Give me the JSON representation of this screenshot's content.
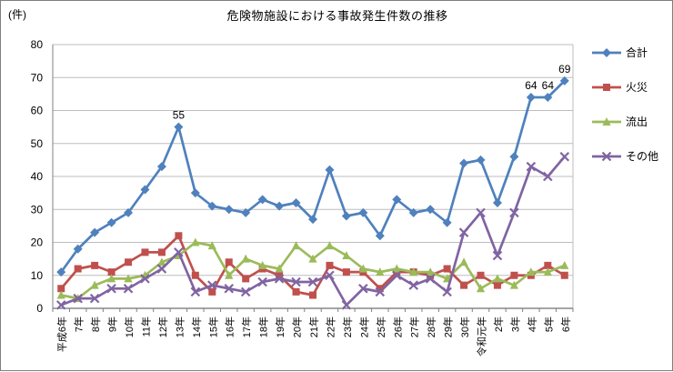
{
  "chart_data": {
    "type": "line",
    "title": "危険物施設における事故発生件数の推移",
    "y_unit_label": "(件)",
    "ylim": [
      0,
      80
    ],
    "ytick_interval": 10,
    "grid": true,
    "legend_position": "right",
    "categories": [
      "平成6年",
      "7年",
      "8年",
      "9年",
      "10年",
      "11年",
      "12年",
      "13年",
      "14年",
      "15年",
      "16年",
      "17年",
      "18年",
      "19年",
      "20年",
      "21年",
      "22年",
      "23年",
      "24年",
      "25年",
      "26年",
      "27年",
      "28年",
      "29年",
      "30年",
      "令和元年",
      "2年",
      "3年",
      "4年",
      "5年",
      "6年"
    ],
    "series": [
      {
        "name": "合計",
        "key": "total",
        "color": "#4F81BD",
        "marker": "diamond",
        "values": [
          11,
          18,
          23,
          26,
          29,
          36,
          43,
          55,
          35,
          31,
          30,
          29,
          33,
          31,
          32,
          27,
          42,
          28,
          29,
          22,
          33,
          29,
          30,
          26,
          44,
          45,
          32,
          46,
          64,
          64,
          69
        ]
      },
      {
        "name": "火災",
        "key": "fire",
        "color": "#C0504D",
        "marker": "square",
        "values": [
          6,
          12,
          13,
          11,
          14,
          17,
          17,
          22,
          10,
          5,
          14,
          9,
          12,
          10,
          5,
          4,
          13,
          11,
          11,
          6,
          11,
          11,
          10,
          12,
          7,
          10,
          7,
          10,
          10,
          13,
          10
        ]
      },
      {
        "name": "流出",
        "key": "spill",
        "color": "#9BBB59",
        "marker": "triangle",
        "values": [
          4,
          3,
          7,
          9,
          9,
          10,
          14,
          16,
          20,
          19,
          10,
          15,
          13,
          12,
          19,
          15,
          19,
          16,
          12,
          11,
          12,
          11,
          11,
          9,
          14,
          6,
          9,
          7,
          11,
          11,
          13
        ]
      },
      {
        "name": "その他",
        "key": "other",
        "color": "#8064A2",
        "marker": "x-cross",
        "values": [
          1,
          3,
          3,
          6,
          6,
          9,
          12,
          17,
          5,
          7,
          6,
          5,
          8,
          9,
          8,
          8,
          10,
          1,
          6,
          5,
          10,
          7,
          9,
          5,
          23,
          29,
          16,
          29,
          43,
          40,
          46
        ]
      }
    ],
    "point_labels": [
      {
        "series": "合計",
        "category": "13年",
        "value": 55,
        "text": "55"
      },
      {
        "series": "合計",
        "category": "4年",
        "value": 64,
        "text": "64"
      },
      {
        "series": "合計",
        "category": "5年",
        "value": 64,
        "text": "64"
      },
      {
        "series": "合計",
        "category": "6年",
        "value": 69,
        "text": "69"
      }
    ]
  }
}
